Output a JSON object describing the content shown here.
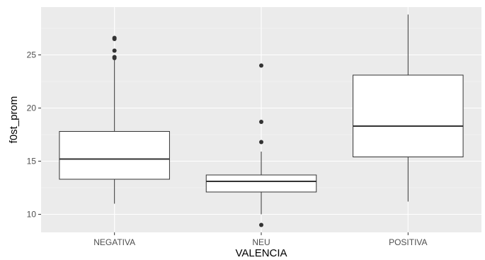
{
  "colors": {
    "panel_bg": "#ebebeb",
    "grid_major": "#ffffff",
    "box_fill": "#ffffff",
    "box_stroke": "#333333",
    "outlier": "#333333",
    "tick_text": "#4d4d4d",
    "axis_title": "#000000"
  },
  "chart_data": {
    "type": "box",
    "xlabel": "VALENCIA",
    "ylabel": "f0st_prom",
    "ylim": [
      8.3,
      29.5
    ],
    "yticks": [
      10,
      15,
      20,
      25
    ],
    "grid": true,
    "legend": "none",
    "categories": [
      "NEGATIVA",
      "NEU",
      "POSITIVA"
    ],
    "boxes": [
      {
        "category": "NEGATIVA",
        "whisker_low": 11.0,
        "q1": 13.3,
        "median": 15.2,
        "q3": 17.8,
        "whisker_high": 24.5,
        "outliers": [
          24.7,
          24.8,
          25.4,
          26.5,
          26.6
        ]
      },
      {
        "category": "NEU",
        "whisker_low": 10.0,
        "q1": 12.1,
        "median": 13.1,
        "q3": 13.7,
        "whisker_high": 15.9,
        "outliers": [
          9.0,
          16.8,
          18.7,
          24.0
        ]
      },
      {
        "category": "POSITIVA",
        "whisker_low": 11.2,
        "q1": 15.4,
        "median": 18.3,
        "q3": 23.1,
        "whisker_high": 28.8,
        "outliers": []
      }
    ]
  }
}
